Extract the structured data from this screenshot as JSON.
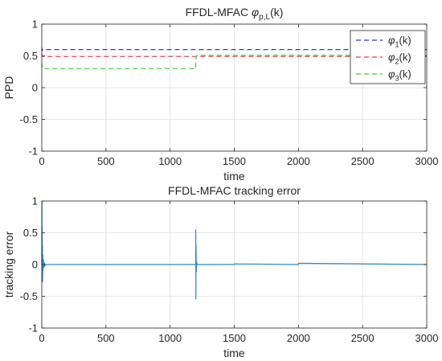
{
  "colors": {
    "phi1": "#2a32e0",
    "phi2": "#e8414a",
    "phi3": "#3ccc3c",
    "error": "#2e86c8",
    "grid": "#e6e6e6",
    "axis": "#262626"
  },
  "chart_data": [
    {
      "type": "line",
      "title_main": "FFDL-MFAC ",
      "title_symbol": "φ",
      "title_sub": "p,L",
      "title_tail": "(k)",
      "xlabel": "time",
      "ylabel": "PPD",
      "xlim": [
        0,
        3000
      ],
      "ylim": [
        -1,
        1
      ],
      "xticks": [
        "0",
        "500",
        "1000",
        "1500",
        "2000",
        "2500",
        "3000"
      ],
      "yticks": [
        "-1",
        "-0.5",
        "0",
        "0.5",
        "1"
      ],
      "grid": true,
      "legend_position": "top-right",
      "series": [
        {
          "name": "φ1(k)",
          "sym": "φ",
          "sub": "1",
          "tail": "(k)",
          "color_key": "phi1",
          "x": [
            0,
            3,
            8,
            3000
          ],
          "y": [
            0.63,
            0.58,
            0.6,
            0.6
          ]
        },
        {
          "name": "φ2(k)",
          "sym": "φ",
          "sub": "2",
          "tail": "(k)",
          "color_key": "phi2",
          "x": [
            0,
            3,
            8,
            3000
          ],
          "y": [
            0.53,
            0.49,
            0.49,
            0.49
          ]
        },
        {
          "name": "φ3(k)",
          "sym": "φ",
          "sub": "3",
          "tail": "(k)",
          "color_key": "phi3",
          "x": [
            0,
            3,
            8,
            1200,
            1200,
            1210,
            3000
          ],
          "y": [
            0.4,
            0.32,
            0.3,
            0.3,
            0.45,
            0.51,
            0.51
          ]
        }
      ]
    },
    {
      "type": "line",
      "title": "FFDL-MFAC tracking error",
      "xlabel": "time",
      "ylabel": "tracking error",
      "xlim": [
        0,
        3000
      ],
      "ylim": [
        -1,
        1
      ],
      "xticks": [
        "0",
        "500",
        "1000",
        "1500",
        "2000",
        "2500",
        "3000"
      ],
      "yticks": [
        "-1",
        "-0.5",
        "0",
        "0.5",
        "1"
      ],
      "grid": true,
      "series": [
        {
          "color_key": "error",
          "x": [
            0,
            1,
            2,
            3,
            4,
            5,
            6,
            8,
            10,
            13,
            16,
            20,
            25,
            30,
            1199,
            1200,
            1201,
            1202,
            1204,
            1207,
            1210,
            1500,
            1501,
            2000,
            2001,
            3000
          ],
          "y": [
            0,
            1.0,
            -0.25,
            0.6,
            -0.15,
            0.3,
            -0.28,
            0.15,
            -0.1,
            0.08,
            -0.05,
            0.03,
            -0.02,
            0,
            0,
            0.55,
            -0.55,
            0.3,
            -0.12,
            0.04,
            0,
            0,
            0.01,
            0,
            0.02,
            0
          ]
        }
      ]
    }
  ]
}
